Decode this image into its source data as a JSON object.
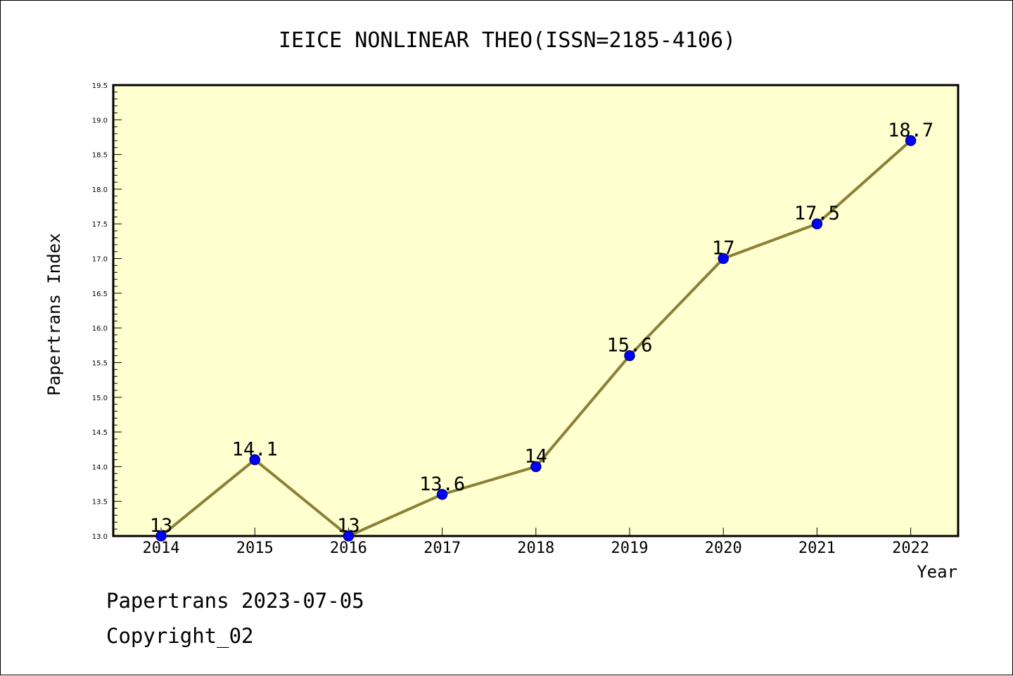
{
  "chart_data": {
    "type": "line",
    "title": "IEICE NONLINEAR THEO(ISSN=2185-4106)",
    "xlabel": "Year",
    "ylabel": "Papertrans Index",
    "categories": [
      "2014",
      "2015",
      "2016",
      "2017",
      "2018",
      "2019",
      "2020",
      "2021",
      "2022"
    ],
    "series": [
      {
        "values": [
          13,
          14.1,
          13,
          13.6,
          14,
          15.6,
          17,
          17.5,
          18.7
        ]
      }
    ],
    "data_labels": [
      "13",
      "14.1",
      "13",
      "13.6",
      "14",
      "15.6",
      "17",
      "17.5",
      "18.7"
    ],
    "ylim": [
      13.0,
      19.5
    ],
    "yticks": [
      "13.0",
      "13.5",
      "14.0",
      "14.5",
      "15.0",
      "15.5",
      "16.0",
      "16.5",
      "17.0",
      "17.5",
      "18.0",
      "18.5",
      "19.0",
      "19.5"
    ],
    "grid": false,
    "legend": "none",
    "colors": {
      "plot_background": "#ffffd0",
      "line": "#8b8035",
      "marker_fill": "#0000ff",
      "marker_stroke": "#00008b"
    }
  },
  "footer": {
    "line1": "Papertrans 2023-07-05",
    "line2": "Copyright_02"
  }
}
